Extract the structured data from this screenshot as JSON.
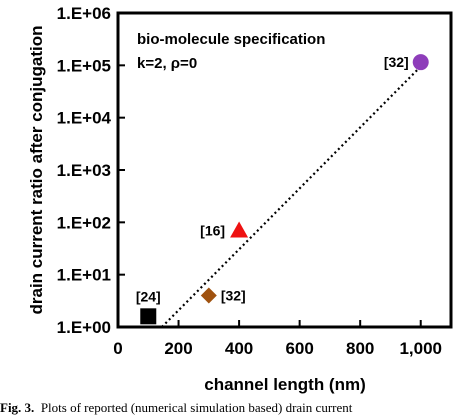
{
  "chart_data": {
    "type": "scatter",
    "xlabel": "channel length (nm)",
    "ylabel": "drain current ratio after conjugation",
    "x_ticks": [
      "0",
      "200",
      "400",
      "600",
      "800",
      "1,000"
    ],
    "x_tick_values": [
      0,
      200,
      400,
      600,
      800,
      1000
    ],
    "xlim": [
      0,
      1100
    ],
    "y_scale": "log",
    "y_ticks": [
      "1.E+00",
      "1.E+01",
      "1.E+02",
      "1.E+03",
      "1.E+04",
      "1.E+05",
      "1.E+06"
    ],
    "y_tick_values": [
      1,
      10,
      100,
      1000,
      10000,
      100000,
      1000000
    ],
    "ylim": [
      1,
      1000000
    ],
    "annotation_lines": [
      "bio-molecule specification",
      "k=2, ρ=0"
    ],
    "points": [
      {
        "label": "[24]",
        "x": 100,
        "y": 1.6,
        "marker": "square",
        "color": "#000000"
      },
      {
        "label": "[32]",
        "x": 300,
        "y": 4,
        "marker": "diamond",
        "color": "#A0520F"
      },
      {
        "label": "[16]",
        "x": 400,
        "y": 70,
        "marker": "triangle",
        "color": "#EE1111"
      },
      {
        "label": "[32]",
        "x": 1000,
        "y": 115000,
        "marker": "circle",
        "color": "#8E3DBA"
      }
    ],
    "trendline": {
      "style": "dotted",
      "from": {
        "x": 145,
        "y": 1
      },
      "to": {
        "x": 1000,
        "y": 95000
      }
    },
    "grid": false
  },
  "caption": {
    "label": "Fig. 3.",
    "text": "Plots of reported (numerical simulation based) drain current"
  }
}
